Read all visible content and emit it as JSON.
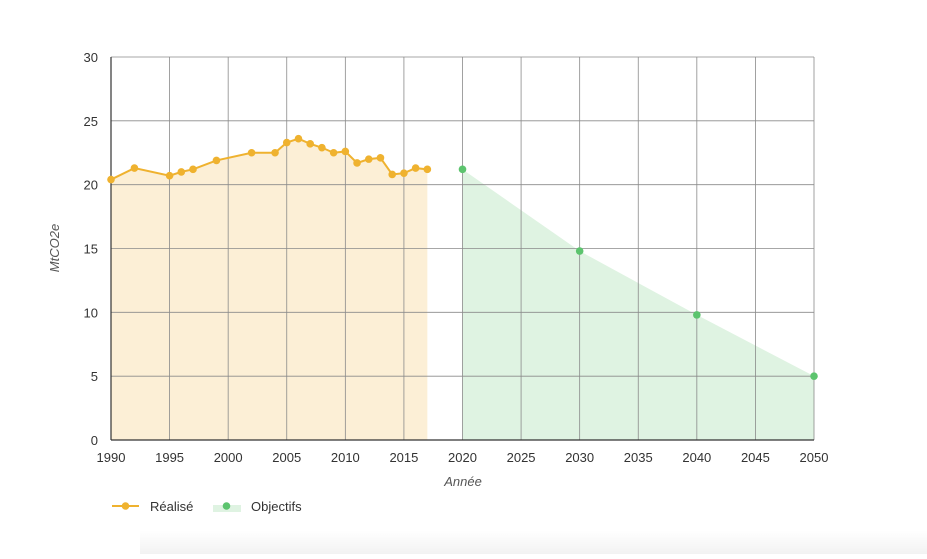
{
  "chart_data": {
    "type": "line",
    "xlabel": "Année",
    "ylabel": "MtCO2e",
    "xlim": [
      1990,
      2050
    ],
    "ylim": [
      0,
      30
    ],
    "x_ticks": [
      1990,
      1995,
      2000,
      2005,
      2010,
      2015,
      2020,
      2025,
      2030,
      2035,
      2040,
      2045,
      2050
    ],
    "y_ticks": [
      0,
      5,
      10,
      15,
      20,
      25,
      30
    ],
    "grid": true,
    "legend_position": "bottom-left",
    "series": [
      {
        "name": "Réalisé",
        "color": "#efb22f",
        "fill": "#fcefd6",
        "line": true,
        "x": [
          1990,
          1992,
          1995,
          1996,
          1997,
          1999,
          2002,
          2004,
          2005,
          2006,
          2007,
          2008,
          2009,
          2010,
          2011,
          2012,
          2013,
          2014,
          2015,
          2016,
          2017
        ],
        "y": [
          20.4,
          21.3,
          20.7,
          21.0,
          21.2,
          21.9,
          22.5,
          22.5,
          23.3,
          23.6,
          23.2,
          22.9,
          22.5,
          22.6,
          21.7,
          22.0,
          22.1,
          20.8,
          20.9,
          21.3,
          21.2
        ]
      },
      {
        "name": "Objectifs",
        "color": "#5cc46e",
        "fill": "#dff3e2",
        "line": false,
        "x": [
          2020,
          2030,
          2040,
          2050
        ],
        "y": [
          21.2,
          14.8,
          9.8,
          5.0
        ]
      }
    ]
  }
}
